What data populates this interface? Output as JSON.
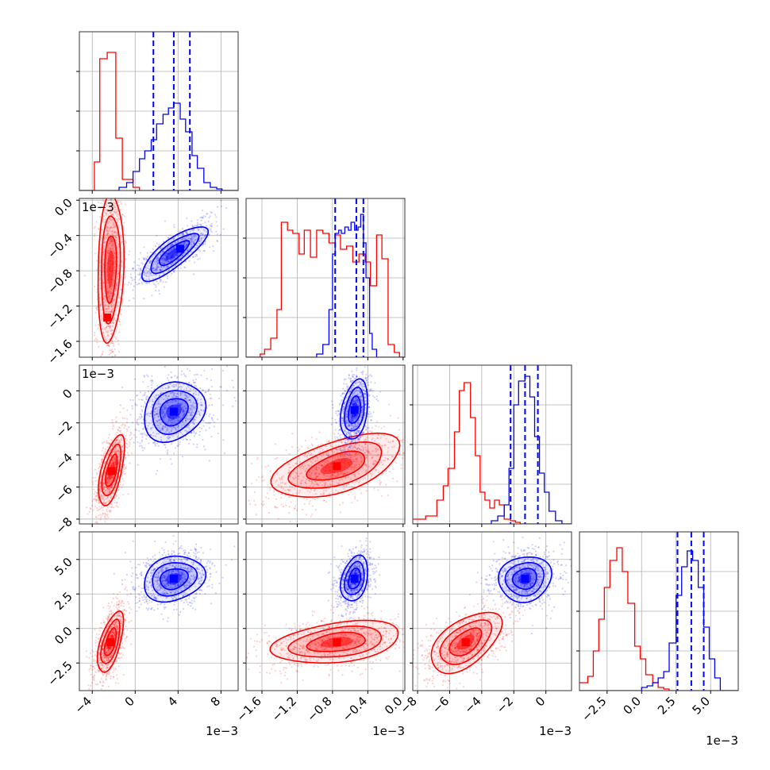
{
  "chart_data": {
    "type": "corner",
    "grid": true,
    "colors": {
      "red": "#ff0000",
      "blue": "#0000ff",
      "grid": "#b0b0b0",
      "spine": "#333333"
    },
    "parameters": [
      {
        "ticks": [
          -4,
          0,
          4,
          8
        ],
        "tick_labels": [
          "−4",
          "0",
          "4",
          "8"
        ],
        "range": [
          -5.2,
          9.6
        ],
        "offset": "1e−3"
      },
      {
        "ticks": [
          -1.6,
          -1.2,
          -0.8,
          -0.4,
          0.0
        ],
        "tick_labels": [
          "−1.6",
          "−1.2",
          "−0.8",
          "−0.4",
          "0.0"
        ],
        "range": [
          -1.78,
          0.02
        ],
        "offset": "1e−3"
      },
      {
        "ticks": [
          -8,
          -6,
          -4,
          -2,
          0
        ],
        "tick_labels": [
          "−8",
          "−6",
          "−4",
          "−2",
          "0"
        ],
        "range": [
          -8.3,
          1.6
        ],
        "offset": "1e−3"
      },
      {
        "ticks": [
          -2.5,
          0.0,
          2.5,
          5.0
        ],
        "tick_labels": [
          "−2.5",
          "0.0",
          "2.5",
          "5.0"
        ],
        "range": [
          -4.5,
          7.0
        ],
        "offset": "1e−3"
      }
    ],
    "series": [
      {
        "color": "red",
        "quantiles": null,
        "hist": [
          {
            "edges": [
              -5.2,
              -4.5,
              -3.8,
              -3.3,
              -2.6,
              -1.8,
              -1.2,
              -0.2,
              0.4,
              1.2,
              2.0,
              3.0,
              4.0,
              5.0,
              6.0,
              7.0,
              8.0,
              9.0,
              9.6
            ],
            "density": [
              0,
              0,
              0.18,
              0.83,
              0.87,
              0.33,
              0.07,
              0.02,
              0,
              0,
              0,
              0,
              0,
              0,
              0,
              0,
              0,
              0
            ]
          },
          {
            "edges": [
              -1.78,
              -1.62,
              -1.57,
              -1.5,
              -1.43,
              -1.38,
              -1.31,
              -1.25,
              -1.18,
              -1.12,
              -1.05,
              -0.98,
              -0.91,
              -0.84,
              -0.77,
              -0.71,
              -0.64,
              -0.57,
              -0.5,
              -0.43,
              -0.37,
              -0.3,
              -0.24,
              -0.17,
              -0.1,
              -0.04,
              0.02
            ],
            "density": [
              0,
              0.02,
              0.05,
              0.12,
              0.3,
              0.85,
              0.8,
              0.78,
              0.65,
              0.8,
              0.63,
              0.8,
              0.78,
              0.72,
              0.77,
              0.68,
              0.7,
              0.6,
              0.65,
              0.6,
              0.45,
              0.77,
              0.62,
              0.08,
              0.03,
              0
            ]
          },
          {
            "edges": [
              -8.3,
              -7.5,
              -6.8,
              -6.4,
              -6.1,
              -5.7,
              -5.4,
              -5.1,
              -4.7,
              -4.4,
              -4.1,
              -3.8,
              -3.5,
              -3.2,
              -2.9,
              -2.6,
              -2.2,
              -1.9,
              -1.6,
              -1.3,
              1.6
            ],
            "density": [
              0.03,
              0.05,
              0.15,
              0.24,
              0.35,
              0.58,
              0.84,
              0.89,
              0.67,
              0.43,
              0.2,
              0.15,
              0.1,
              0.15,
              0.12,
              0.03,
              0.02,
              0.01,
              0,
              0
            ]
          },
          {
            "edges": [
              -4.5,
              -3.9,
              -3.5,
              -3.1,
              -2.7,
              -2.3,
              -1.8,
              -1.4,
              -1.0,
              -0.5,
              -0.1,
              0.3,
              0.8,
              1.2,
              1.6,
              2.0,
              7.0
            ],
            "density": [
              0.05,
              0.09,
              0.25,
              0.45,
              0.65,
              0.82,
              0.9,
              0.75,
              0.55,
              0.28,
              0.2,
              0.1,
              0.05,
              0.02,
              0.01,
              0
            ]
          }
        ],
        "clusters": [
          {
            "x": 0,
            "y": 1,
            "cx": -2.3,
            "cy": -0.77,
            "sx": 0.55,
            "sy": 0.38,
            "rho": 0.15,
            "ncontours": 3,
            "stretch_x": 0.8,
            "stretch_y": 1.2,
            "peak": [
              -2.6,
              -1.33
            ]
          },
          {
            "x": 0,
            "y": 2,
            "cx": -2.2,
            "cy": -5.0,
            "sx": 0.55,
            "sy": 1.0,
            "rho": 0.6,
            "ncontours": 3
          },
          {
            "x": 1,
            "y": 2,
            "cx": -0.75,
            "cy": -4.7,
            "sx": 0.33,
            "sy": 0.9,
            "rho": 0.55,
            "ncontours": 3
          },
          {
            "x": 0,
            "y": 3,
            "cx": -2.3,
            "cy": -1.0,
            "sx": 0.55,
            "sy": 1.0,
            "rho": 0.6,
            "ncontours": 3
          },
          {
            "x": 1,
            "y": 3,
            "cx": -0.75,
            "cy": -1.0,
            "sx": 0.33,
            "sy": 0.7,
            "rho": 0.35,
            "ncontours": 3
          },
          {
            "x": 2,
            "y": 3,
            "cx": -5.0,
            "cy": -1.0,
            "sx": 1.0,
            "sy": 1.0,
            "rho": 0.55,
            "ncontours": 3
          }
        ]
      },
      {
        "color": "blue",
        "quantiles": [
          [
            1.7,
            3.6,
            5.1
          ],
          [
            -0.77,
            -0.53,
            -0.45
          ],
          [
            -2.2,
            -1.3,
            -0.5
          ],
          [
            2.6,
            3.6,
            4.5
          ]
        ],
        "hist": [
          {
            "edges": [
              -5.2,
              -1.5,
              -0.8,
              -0.2,
              0.4,
              0.9,
              1.5,
              2.0,
              2.6,
              3.1,
              3.6,
              4.2,
              4.7,
              5.3,
              5.8,
              6.4,
              7.0,
              7.6,
              8.1,
              9.6
            ],
            "density": [
              0,
              0.02,
              0.05,
              0.12,
              0.2,
              0.25,
              0.32,
              0.42,
              0.48,
              0.52,
              0.55,
              0.45,
              0.37,
              0.22,
              0.14,
              0.05,
              0.02,
              0.01,
              0
            ]
          },
          {
            "edges": [
              -1.78,
              -0.98,
              -0.91,
              -0.84,
              -0.8,
              -0.77,
              -0.73,
              -0.7,
              -0.66,
              -0.62,
              -0.59,
              -0.55,
              -0.51,
              -0.48,
              -0.45,
              -0.42,
              -0.38,
              -0.35,
              -0.3,
              0.02
            ],
            "density": [
              0,
              0.02,
              0.08,
              0.3,
              0.65,
              0.78,
              0.8,
              0.78,
              0.82,
              0.8,
              0.85,
              0.8,
              0.82,
              0.9,
              0.72,
              0.5,
              0.15,
              0.05,
              0
            ]
          },
          {
            "edges": [
              -8.3,
              -3.4,
              -3.0,
              -2.6,
              -2.3,
              -2.0,
              -1.7,
              -1.3,
              -1.0,
              -0.7,
              -0.4,
              -0.1,
              0.2,
              0.6,
              1.0,
              1.6
            ],
            "density": [
              0,
              0.02,
              0.05,
              0.12,
              0.35,
              0.75,
              0.9,
              0.93,
              0.8,
              0.55,
              0.32,
              0.2,
              0.08,
              0.02,
              0
            ]
          },
          {
            "edges": [
              -4.5,
              0.0,
              0.4,
              0.8,
              1.2,
              1.6,
              2.0,
              2.5,
              2.9,
              3.3,
              3.7,
              4.1,
              4.5,
              4.9,
              5.3,
              5.7,
              7.0
            ],
            "density": [
              0,
              0.02,
              0.03,
              0.05,
              0.08,
              0.12,
              0.3,
              0.6,
              0.78,
              0.88,
              0.82,
              0.65,
              0.4,
              0.2,
              0.08,
              0
            ]
          }
        ],
        "clusters": [
          {
            "x": 0,
            "y": 1,
            "cx": 3.6,
            "cy": -0.6,
            "sx": 1.4,
            "sy": 0.14,
            "rho": 0.8,
            "ncontours": 3,
            "peak": [
              4.2,
              -0.55
            ]
          },
          {
            "x": 0,
            "y": 2,
            "cx": 3.6,
            "cy": -1.3,
            "sx": 1.3,
            "sy": 0.85,
            "rho": 0.2,
            "ncontours": 3
          },
          {
            "x": 1,
            "y": 2,
            "cx": -0.55,
            "cy": -1.2,
            "sx": 0.07,
            "sy": 0.85,
            "rho": 0.3,
            "ncontours": 3
          },
          {
            "x": 0,
            "y": 3,
            "cx": 3.6,
            "cy": 3.6,
            "sx": 1.3,
            "sy": 0.75,
            "rho": 0.2,
            "ncontours": 3
          },
          {
            "x": 1,
            "y": 3,
            "cx": -0.55,
            "cy": 3.6,
            "sx": 0.07,
            "sy": 0.75,
            "rho": 0.3,
            "ncontours": 3
          },
          {
            "x": 2,
            "y": 3,
            "cx": -1.3,
            "cy": 3.6,
            "sx": 0.75,
            "sy": 0.75,
            "rho": 0.1,
            "ncontours": 3
          }
        ]
      }
    ]
  }
}
